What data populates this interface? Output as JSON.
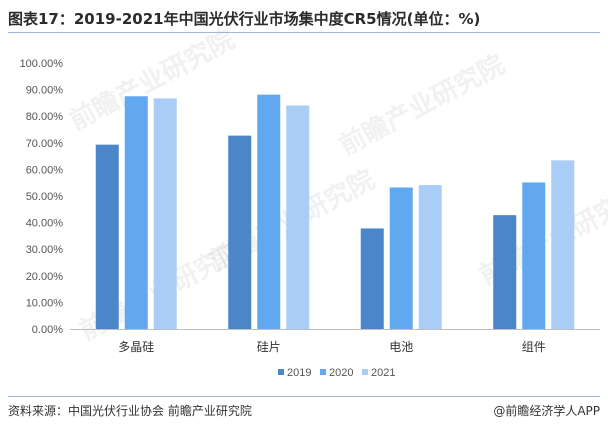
{
  "title": "图表17：2019-2021年中国光伏行业市场集中度CR5情况(单位：%)",
  "source": "资料来源：中国光伏行业协会 前瞻产业研究院",
  "brand": "@前瞻经济学人APP",
  "watermark": "前瞻产业研究院",
  "colors": {
    "2019": "#4a86c8",
    "2020": "#62a8f0",
    "2021": "#a9cdf6"
  },
  "chart_data": {
    "type": "bar",
    "categories": [
      "多晶硅",
      "硅片",
      "电池",
      "组件"
    ],
    "series": [
      {
        "name": "2019",
        "values": [
          69.3,
          72.7,
          37.8,
          42.8
        ]
      },
      {
        "name": "2020",
        "values": [
          87.5,
          88.1,
          53.2,
          55.1
        ]
      },
      {
        "name": "2021",
        "values": [
          86.7,
          84.0,
          54.1,
          63.4
        ]
      }
    ],
    "ylim": [
      0,
      100
    ],
    "yticks": [
      "0.00%",
      "10.00%",
      "20.00%",
      "30.00%",
      "40.00%",
      "50.00%",
      "60.00%",
      "70.00%",
      "80.00%",
      "90.00%",
      "100.00%"
    ],
    "legend_position": "bottom",
    "grid": false
  }
}
